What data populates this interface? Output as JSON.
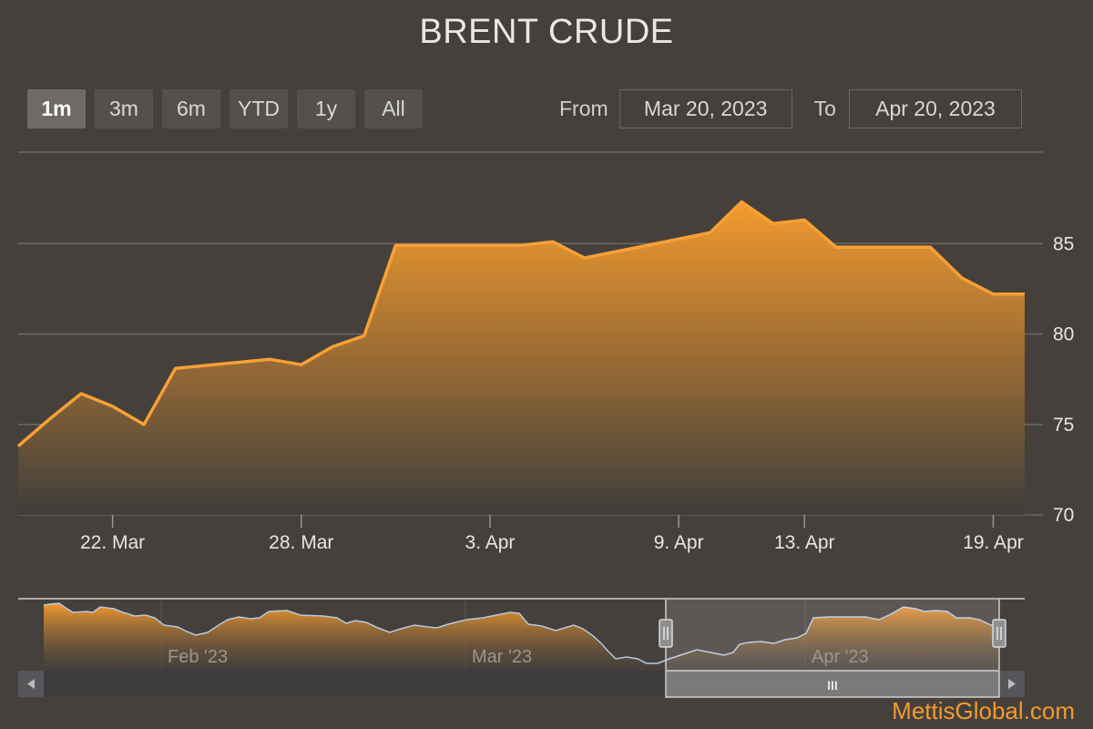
{
  "title": "BRENT CRUDE",
  "range_selector": {
    "buttons": [
      "1m",
      "3m",
      "6m",
      "YTD",
      "1y",
      "All"
    ],
    "active": "1m"
  },
  "date_range": {
    "from_label": "From",
    "from_value": "Mar 20, 2023",
    "to_label": "To",
    "to_value": "Apr 20, 2023"
  },
  "navigator": {
    "labels": [
      "Feb '23",
      "Mar '23",
      "Apr '23"
    ],
    "thumb_grip": "III"
  },
  "watermark": "MettisGlobal.com",
  "colors": {
    "background": "#45403c",
    "series": "#f7a035",
    "navigator_line": "#b9c8de",
    "watermark": "#f29a2e"
  },
  "chart_data": {
    "type": "area",
    "title": "BRENT CRUDE",
    "x_tick_labels": [
      "22. Mar",
      "28. Mar",
      "3. Apr",
      "9. Apr",
      "13. Apr",
      "19. Apr"
    ],
    "x_tick_dates": [
      "2023-03-22",
      "2023-03-28",
      "2023-04-03",
      "2023-04-09",
      "2023-04-13",
      "2023-04-19"
    ],
    "y_tick_labels": [
      "70",
      "75",
      "80",
      "85"
    ],
    "ylim": [
      70,
      90
    ],
    "xlim": [
      "2023-03-19",
      "2023-04-20"
    ],
    "grid": true,
    "series": [
      {
        "x": [
          "2023-03-19",
          "2023-03-20",
          "2023-03-21",
          "2023-03-22",
          "2023-03-23",
          "2023-03-24",
          "2023-03-27",
          "2023-03-28",
          "2023-03-29",
          "2023-03-30",
          "2023-03-31",
          "2023-04-03",
          "2023-04-04",
          "2023-04-05",
          "2023-04-06",
          "2023-04-10",
          "2023-04-11",
          "2023-04-12",
          "2023-04-13",
          "2023-04-14",
          "2023-04-17",
          "2023-04-18",
          "2023-04-19",
          "2023-04-20"
        ],
        "values": [
          73.8,
          75.3,
          76.7,
          76.0,
          75.0,
          78.1,
          78.6,
          78.3,
          79.3,
          79.9,
          84.9,
          84.9,
          84.9,
          85.1,
          84.2,
          85.6,
          87.3,
          86.1,
          86.3,
          84.8,
          84.8,
          83.1,
          82.2,
          82.2
        ]
      }
    ]
  }
}
